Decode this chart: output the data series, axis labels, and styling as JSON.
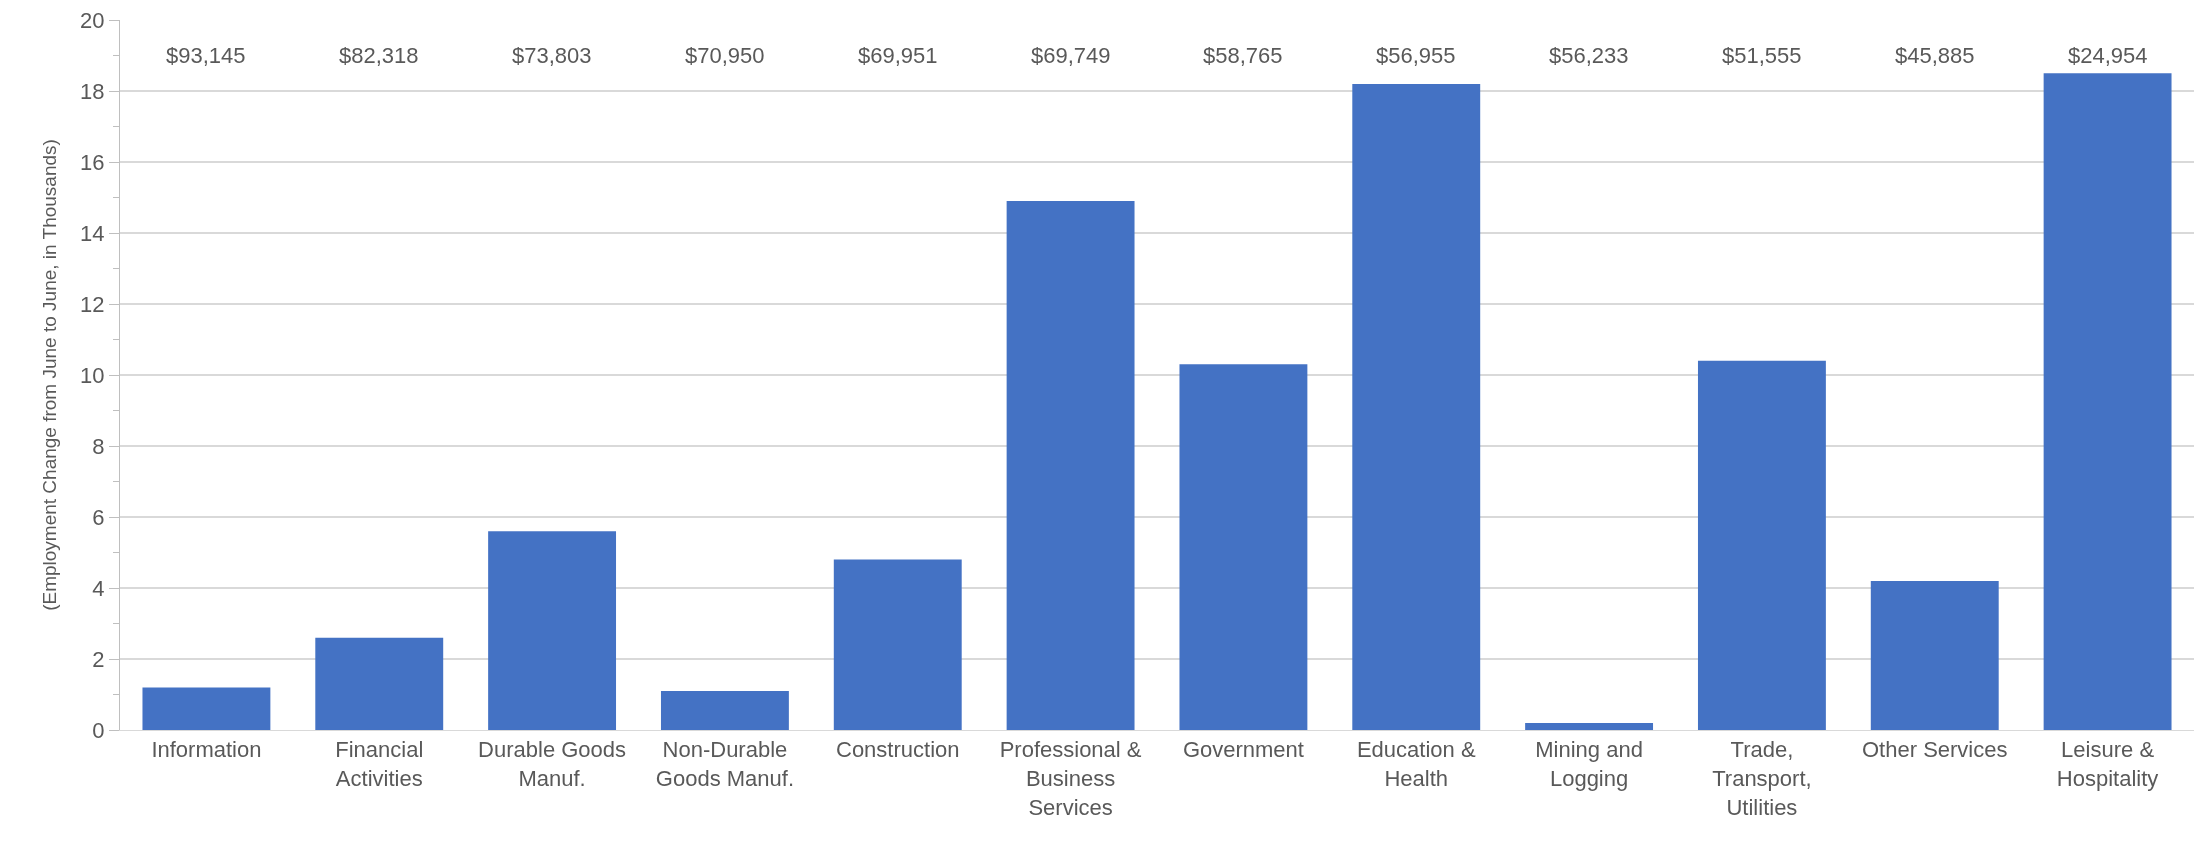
{
  "chart_data": {
    "type": "bar",
    "ylabel": "(Employment Change from June to June, in Thousands)",
    "categories": [
      "Information",
      "Financial Activities",
      "Durable Goods Manuf.",
      "Non-Durable Goods Manuf.",
      "Construction",
      "Professional & Business Services",
      "Government",
      "Education & Health",
      "Mining and Logging",
      "Trade, Transport, Utilities",
      "Other Services",
      "Leisure & Hospitality"
    ],
    "values": [
      1.2,
      2.6,
      5.6,
      1.1,
      4.8,
      14.9,
      10.3,
      18.2,
      0.2,
      10.4,
      4.2,
      18.5
    ],
    "color": "#4472c4",
    "ylim": [
      0,
      20
    ],
    "yticks": [
      0,
      {
        "value": 1,
        "label": null
      },
      2,
      {
        "value": 3,
        "label": null
      },
      4,
      {
        "value": 5,
        "label": null
      },
      6,
      {
        "value": 7,
        "label": null
      },
      8,
      {
        "value": 9,
        "label": null
      },
      10,
      {
        "value": 11,
        "label": null
      },
      12,
      {
        "value": 13,
        "label": null
      },
      14,
      {
        "value": 15,
        "label": null
      },
      16,
      {
        "value": 17,
        "label": null
      },
      18,
      {
        "value": 19,
        "label": null
      },
      20
    ],
    "grid": "y",
    "annotations": [
      "$93,145",
      "$82,318",
      "$73,803",
      "$70,950",
      "$69,951",
      "$69,749",
      "$58,765",
      "$56,955",
      "$56,233",
      "$51,555",
      "$45,885",
      "$24,954"
    ]
  }
}
